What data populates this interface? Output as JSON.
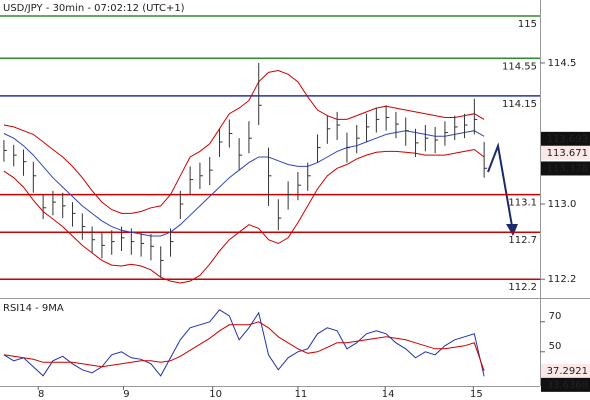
{
  "chart_data": {
    "type": "ohlc",
    "title": "USD/JPY - 30min - 07:02:12 (UTC+1)",
    "xlim": [
      -0.4,
      54.7
    ],
    "xticks": [
      {
        "value": 3.5,
        "label": "8"
      },
      {
        "value": 12.2,
        "label": "9"
      },
      {
        "value": 21.3,
        "label": "10"
      },
      {
        "value": 30,
        "label": "11"
      },
      {
        "value": 38.9,
        "label": "14"
      },
      {
        "value": 47.9,
        "label": "15"
      }
    ],
    "ylim": [
      112.0,
      115.17
    ],
    "yticks": [
      114.5,
      {
        "value": 113,
        "label": "113.0"
      },
      112.2
    ],
    "levels": [
      {
        "value": 115,
        "color": "#2e8b2e"
      },
      {
        "value": 114.55,
        "color": "#2e8b2e"
      },
      {
        "value": 114.15,
        "color": "#2233aa"
      },
      {
        "value": 113.1,
        "color": "#cc0000"
      },
      {
        "value": 112.7,
        "color": "#cc0000"
      },
      {
        "value": 112.2,
        "color": "#cc0000"
      }
    ],
    "price_tags": [
      {
        "value": 113.693,
        "style": "dark"
      },
      {
        "value": 113.671,
        "style": "red"
      },
      {
        "value": 113.378,
        "style": "dark"
      }
    ],
    "bar_color": "#333333",
    "high": [
      113.68,
      113.63,
      113.58,
      113.45,
      113.1,
      113.14,
      113.12,
      113.02,
      112.9,
      112.76,
      112.7,
      112.72,
      112.76,
      112.74,
      112.7,
      112.68,
      112.55,
      112.74,
      113.14,
      113.4,
      113.44,
      113.5,
      113.8,
      113.9,
      113.7,
      113.88,
      114.5,
      113.6,
      113.05,
      113.24,
      113.34,
      113.44,
      113.74,
      113.94,
      113.98,
      113.76,
      113.84,
      113.96,
      114.02,
      114.05,
      113.98,
      113.92,
      113.8,
      113.84,
      113.82,
      113.88,
      113.94,
      113.96,
      114.12,
      113.66
    ],
    "low": [
      113.45,
      113.4,
      113.3,
      113.12,
      112.84,
      112.88,
      112.85,
      112.76,
      112.62,
      112.48,
      112.42,
      112.46,
      112.5,
      112.46,
      112.44,
      112.4,
      112.22,
      112.44,
      112.84,
      113.1,
      113.16,
      113.2,
      113.5,
      113.6,
      113.36,
      113.54,
      113.84,
      112.98,
      112.72,
      112.94,
      113.04,
      113.14,
      113.44,
      113.64,
      113.68,
      113.44,
      113.54,
      113.66,
      113.76,
      113.78,
      113.7,
      113.62,
      113.5,
      113.56,
      113.54,
      113.62,
      113.68,
      113.7,
      113.74,
      113.28
    ],
    "series": [
      {
        "name": "close",
        "color": "#333333",
        "values": [
          113.57,
          113.52,
          113.45,
          113.3,
          112.96,
          113.02,
          112.98,
          112.9,
          112.76,
          112.62,
          112.56,
          112.6,
          112.64,
          112.6,
          112.58,
          112.55,
          112.4,
          112.6,
          113.0,
          113.26,
          113.3,
          113.36,
          113.66,
          113.75,
          113.52,
          113.7,
          114.05,
          113.3,
          112.85,
          113.1,
          113.2,
          113.3,
          113.6,
          113.8,
          113.84,
          113.6,
          113.7,
          113.82,
          113.9,
          113.92,
          113.85,
          113.78,
          113.65,
          113.7,
          113.68,
          113.76,
          113.82,
          113.84,
          113.9,
          113.38
        ]
      },
      {
        "name": "ma",
        "color": "#3344bb",
        "values": [
          113.75,
          113.7,
          113.62,
          113.52,
          113.4,
          113.28,
          113.18,
          113.08,
          112.98,
          112.9,
          112.82,
          112.76,
          112.72,
          112.7,
          112.68,
          112.66,
          112.66,
          112.7,
          112.78,
          112.88,
          112.98,
          113.08,
          113.18,
          113.28,
          113.36,
          113.44,
          113.5,
          113.5,
          113.46,
          113.42,
          113.4,
          113.4,
          113.44,
          113.5,
          113.56,
          113.6,
          113.62,
          113.66,
          113.7,
          113.74,
          113.76,
          113.78,
          113.76,
          113.74,
          113.72,
          113.72,
          113.74,
          113.76,
          113.78,
          113.72
        ]
      },
      {
        "name": "upper",
        "color": "#cc0000",
        "values": [
          113.84,
          113.82,
          113.78,
          113.74,
          113.66,
          113.58,
          113.5,
          113.4,
          113.28,
          113.14,
          113.02,
          112.94,
          112.9,
          112.9,
          112.92,
          112.96,
          112.98,
          113.1,
          113.3,
          113.5,
          113.56,
          113.64,
          113.8,
          113.96,
          114.02,
          114.1,
          114.3,
          114.4,
          114.42,
          114.38,
          114.3,
          114.14,
          114.0,
          113.94,
          113.9,
          113.9,
          113.94,
          113.98,
          114.02,
          114.04,
          114.02,
          114.0,
          113.98,
          113.96,
          113.94,
          113.92,
          113.92,
          113.94,
          113.96,
          113.9
        ]
      },
      {
        "name": "lower",
        "color": "#cc0000",
        "values": [
          113.35,
          113.28,
          113.18,
          113.04,
          112.92,
          112.84,
          112.76,
          112.66,
          112.56,
          112.48,
          112.4,
          112.35,
          112.34,
          112.36,
          112.34,
          112.3,
          112.22,
          112.18,
          112.16,
          112.18,
          112.24,
          112.36,
          112.5,
          112.62,
          112.7,
          112.78,
          112.74,
          112.62,
          112.58,
          112.64,
          112.8,
          112.98,
          113.16,
          113.3,
          113.38,
          113.42,
          113.48,
          113.52,
          113.55,
          113.56,
          113.56,
          113.55,
          113.54,
          113.52,
          113.52,
          113.52,
          113.54,
          113.56,
          113.58,
          113.5
        ]
      }
    ],
    "rsi": {
      "title": "RSI14 - 9MA",
      "ylim": [
        27.2,
        84.5
      ],
      "yticks": [
        70,
        50
      ],
      "tags": [
        {
          "value": 37.2921,
          "style": "red"
        },
        {
          "value": 33.6368,
          "style": "dark"
        }
      ],
      "series": [
        {
          "name": "rsi",
          "color": "#2233aa",
          "values": [
            48,
            44,
            46,
            40,
            34,
            44,
            47,
            42,
            38,
            36,
            40,
            48,
            50,
            46,
            45,
            42,
            34,
            46,
            58,
            66,
            68,
            70,
            78,
            74,
            58,
            66,
            76,
            48,
            38,
            46,
            50,
            52,
            62,
            66,
            64,
            52,
            56,
            62,
            64,
            62,
            56,
            52,
            46,
            50,
            48,
            54,
            58,
            60,
            62,
            33.6368
          ]
        },
        {
          "name": "rsi-ma",
          "color": "#cc0000",
          "values": [
            48,
            47,
            46,
            45,
            43,
            43,
            43,
            43,
            42,
            41,
            40,
            41,
            42,
            43,
            44,
            44,
            43,
            44,
            47,
            51,
            55,
            59,
            64,
            68,
            68,
            68,
            70,
            66,
            60,
            56,
            52,
            49,
            50,
            53,
            56,
            56,
            57,
            58,
            59,
            60,
            59,
            58,
            56,
            54,
            52,
            52,
            53,
            54,
            56,
            37.2921
          ]
        }
      ]
    }
  }
}
